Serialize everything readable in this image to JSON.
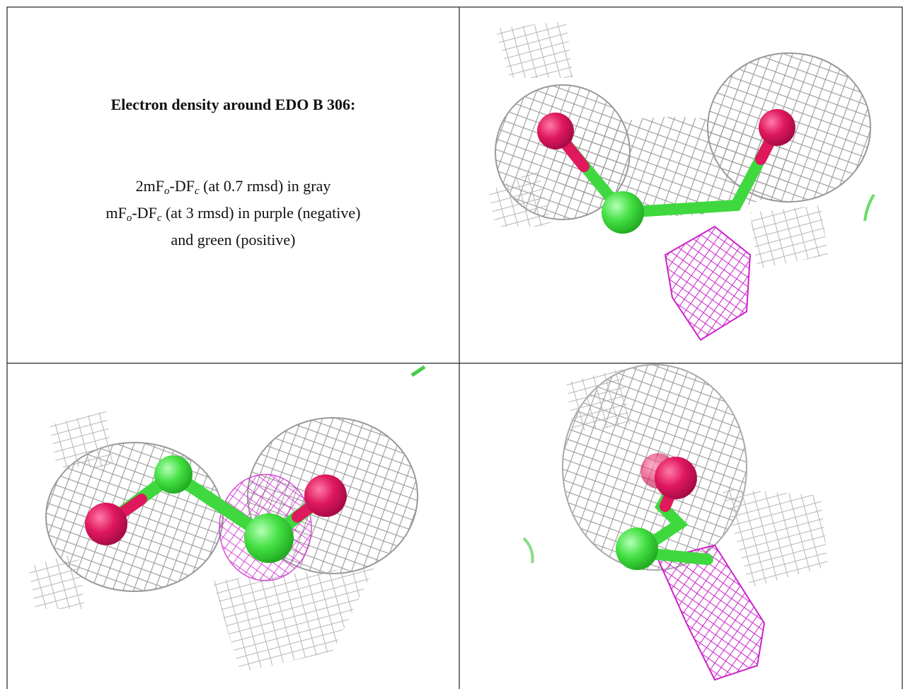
{
  "figure": {
    "title": "Electron density around EDO B 306:",
    "lines": [
      [
        "2mF",
        "o",
        "-DF",
        "c",
        " (at 0.7 rmsd) in gray"
      ],
      [
        "mF",
        "o",
        "-DF",
        "c",
        " (at 3 rmsd) in purple (negative)"
      ],
      [
        "and green (positive)"
      ]
    ]
  }
}
